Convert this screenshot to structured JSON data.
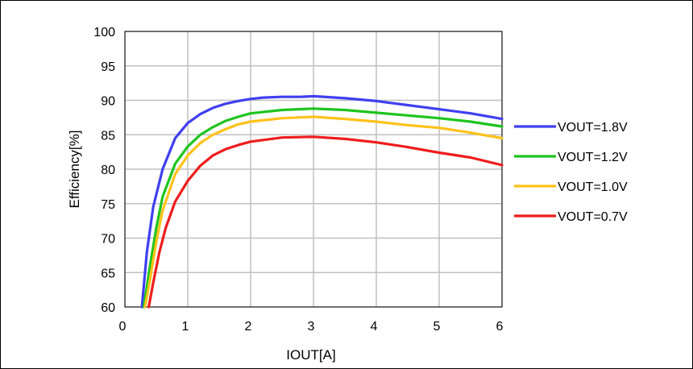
{
  "chart_data": {
    "type": "line",
    "title": "",
    "xlabel": "IOUT[A]",
    "ylabel": "Efficiency[%]",
    "xlim": [
      0,
      6
    ],
    "ylim": [
      60,
      100
    ],
    "xticks": [
      "0",
      "1",
      "2",
      "3",
      "4",
      "5",
      "6"
    ],
    "yticks": [
      "60",
      "65",
      "70",
      "75",
      "80",
      "85",
      "90",
      "95",
      "100"
    ],
    "grid": true,
    "legend_position": "right",
    "series": [
      {
        "name": "VOUT=1.8V",
        "color": "#3f3ff0",
        "x": [
          0.27,
          0.35,
          0.45,
          0.6,
          0.8,
          1.0,
          1.2,
          1.4,
          1.6,
          1.8,
          2.0,
          2.2,
          2.5,
          2.8,
          3.0,
          3.5,
          4.0,
          4.5,
          5.0,
          5.5,
          6.0
        ],
        "y": [
          60,
          68,
          74.5,
          80,
          84.5,
          86.7,
          88,
          88.9,
          89.5,
          89.9,
          90.2,
          90.4,
          90.5,
          90.5,
          90.6,
          90.3,
          89.9,
          89.3,
          88.7,
          88.1,
          87.3
        ]
      },
      {
        "name": "VOUT=1.2V",
        "color": "#1fc41f",
        "x": [
          0.3,
          0.4,
          0.5,
          0.6,
          0.8,
          1.0,
          1.2,
          1.4,
          1.6,
          1.8,
          2.0,
          2.5,
          3.0,
          3.5,
          4.0,
          4.5,
          5.0,
          5.5,
          6.0
        ],
        "y": [
          60,
          66,
          71.5,
          76,
          80.8,
          83.3,
          85,
          86.1,
          87,
          87.6,
          88.1,
          88.6,
          88.8,
          88.6,
          88.2,
          87.8,
          87.4,
          86.9,
          86.2
        ]
      },
      {
        "name": "VOUT=1.0V",
        "color": "#ffc21a",
        "x": [
          0.32,
          0.4,
          0.5,
          0.6,
          0.8,
          1.0,
          1.2,
          1.4,
          1.6,
          1.8,
          2.0,
          2.5,
          3.0,
          3.5,
          4.0,
          4.5,
          5.0,
          5.5,
          6.0
        ],
        "y": [
          60,
          64,
          69.5,
          74,
          79.3,
          82,
          83.8,
          85,
          85.8,
          86.5,
          86.9,
          87.4,
          87.6,
          87.3,
          86.9,
          86.4,
          86,
          85.3,
          84.5
        ]
      },
      {
        "name": "VOUT=0.7V",
        "color": "#ee1c1c",
        "x": [
          0.38,
          0.45,
          0.55,
          0.65,
          0.8,
          1.0,
          1.2,
          1.4,
          1.6,
          1.8,
          2.0,
          2.5,
          3.0,
          3.5,
          4.0,
          4.5,
          5.0,
          5.5,
          6.0
        ],
        "y": [
          60,
          63.5,
          68,
          71.5,
          75.3,
          78.3,
          80.5,
          82,
          82.9,
          83.5,
          84,
          84.6,
          84.7,
          84.4,
          83.9,
          83.2,
          82.4,
          81.7,
          80.6
        ]
      }
    ]
  }
}
